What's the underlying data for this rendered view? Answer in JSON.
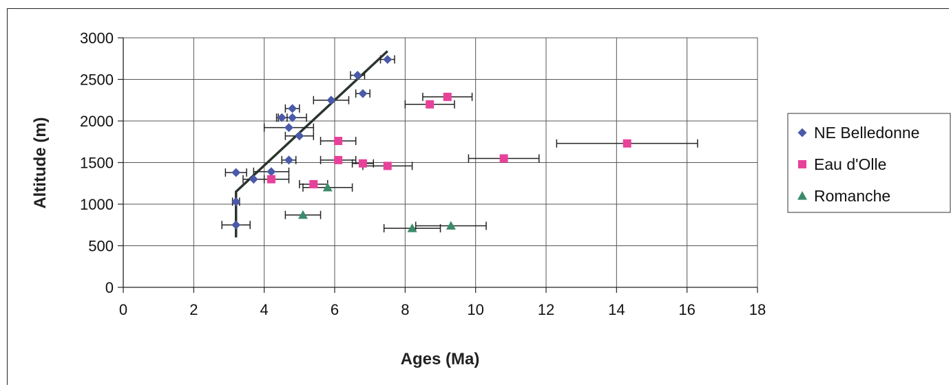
{
  "chart_data": {
    "type": "scatter",
    "title": "",
    "xlabel": "Ages (Ma)",
    "ylabel": "Altitude (m)",
    "xlim": [
      0,
      18
    ],
    "ylim": [
      0,
      3000
    ],
    "x_ticks": [
      0,
      2,
      4,
      6,
      8,
      10,
      12,
      14,
      16,
      18
    ],
    "y_ticks": [
      0,
      500,
      1000,
      1500,
      2000,
      2500,
      3000
    ],
    "x_tick_labels": [
      "0",
      "2",
      "4",
      "6",
      "8",
      "10",
      "12",
      "14",
      "16",
      "18"
    ],
    "y_tick_labels": [
      "0",
      "500",
      "1000",
      "1500",
      "2000",
      "2500",
      "3000"
    ],
    "grid": true,
    "legend_position": "right",
    "series": [
      {
        "name": "NE Belledonne",
        "marker": "diamond",
        "color": "#4a5aa8",
        "points": [
          {
            "x": 7.5,
            "y": 2740,
            "xerr": 0.2
          },
          {
            "x": 6.65,
            "y": 2550,
            "xerr": 0.2
          },
          {
            "x": 6.8,
            "y": 2330,
            "xerr": 0.2
          },
          {
            "x": 5.9,
            "y": 2250,
            "xerr": 0.5
          },
          {
            "x": 4.8,
            "y": 2150,
            "xerr": 0.2
          },
          {
            "x": 4.5,
            "y": 2040,
            "xerr": 0.15
          },
          {
            "x": 4.8,
            "y": 2040,
            "xerr": 0.4
          },
          {
            "x": 4.7,
            "y": 1920,
            "xerr": 0.7
          },
          {
            "x": 5.0,
            "y": 1820,
            "xerr": 0.4
          },
          {
            "x": 4.7,
            "y": 1530,
            "xerr": 0.2
          },
          {
            "x": 4.2,
            "y": 1390,
            "xerr": 0.5
          },
          {
            "x": 3.2,
            "y": 1380,
            "xerr": 0.3
          },
          {
            "x": 3.7,
            "y": 1300,
            "xerr": 0.3
          },
          {
            "x": 3.2,
            "y": 1030,
            "xerr": 0.1
          },
          {
            "x": 3.2,
            "y": 750,
            "xerr": 0.4
          }
        ]
      },
      {
        "name": "Eau d'Olle",
        "marker": "square",
        "color": "#e8419a",
        "points": [
          {
            "x": 9.2,
            "y": 2290,
            "xerr": 0.7
          },
          {
            "x": 8.7,
            "y": 2200,
            "xerr": 0.7
          },
          {
            "x": 14.3,
            "y": 1730,
            "xerr": 2.0
          },
          {
            "x": 6.1,
            "y": 1760,
            "xerr": 0.5
          },
          {
            "x": 10.8,
            "y": 1550,
            "xerr": 1.0
          },
          {
            "x": 6.1,
            "y": 1530,
            "xerr": 0.5
          },
          {
            "x": 6.8,
            "y": 1490,
            "xerr": 0.3
          },
          {
            "x": 7.5,
            "y": 1460,
            "xerr": 0.7
          },
          {
            "x": 4.2,
            "y": 1300,
            "xerr": 0.5
          },
          {
            "x": 5.4,
            "y": 1240,
            "xerr": 0.4
          }
        ]
      },
      {
        "name": "Romanche",
        "marker": "triangle",
        "color": "#3c8a6c",
        "points": [
          {
            "x": 5.8,
            "y": 1200,
            "xerr": 0.7
          },
          {
            "x": 5.1,
            "y": 870,
            "xerr": 0.5
          },
          {
            "x": 9.3,
            "y": 740,
            "xerr": 1.0
          },
          {
            "x": 8.2,
            "y": 710,
            "xerr": 0.8
          }
        ]
      }
    ],
    "trend_line": {
      "color": "#2a352e",
      "points": [
        {
          "x": 3.2,
          "y": 600
        },
        {
          "x": 3.2,
          "y": 1150
        },
        {
          "x": 7.5,
          "y": 2840
        }
      ]
    }
  }
}
